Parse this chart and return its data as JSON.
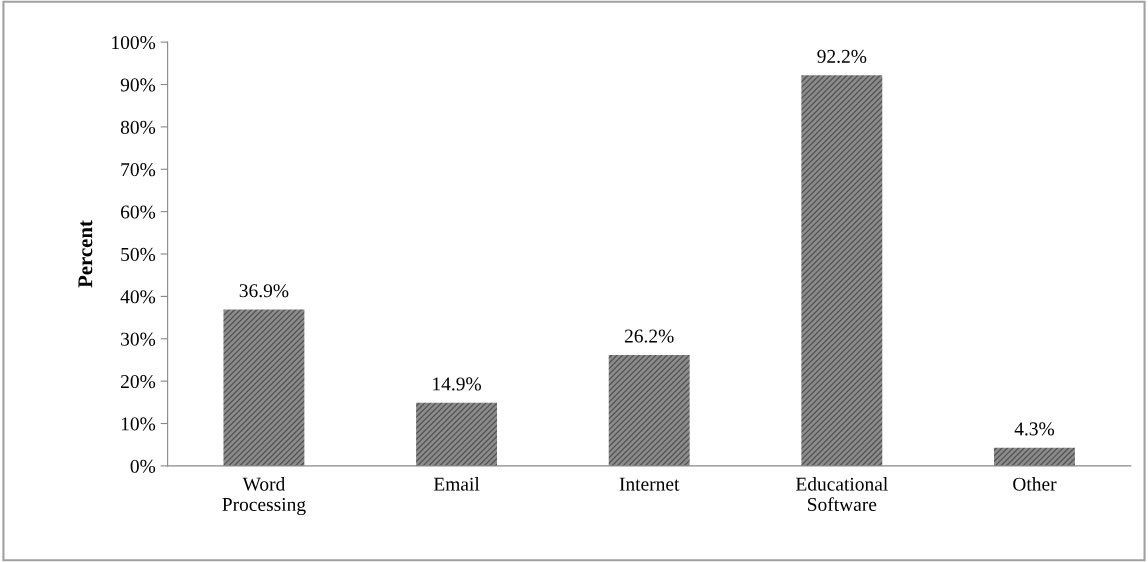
{
  "chart_data": {
    "type": "bar",
    "ylabel": "Percent",
    "categories": [
      "Word\nProcessing",
      "Email",
      "Internet",
      "Educational\nSoftware",
      "Other"
    ],
    "values": [
      36.9,
      14.9,
      26.2,
      92.2,
      4.3
    ],
    "value_labels": [
      "36.9%",
      "14.9%",
      "26.2%",
      "92.2%",
      "4.3%"
    ],
    "color": "#8c8c8c",
    "ylim": [
      0,
      100
    ],
    "yticks": [
      {
        "value": 0,
        "label": "0%"
      },
      {
        "value": 10,
        "label": "10%"
      },
      {
        "value": 20,
        "label": "20%"
      },
      {
        "value": 30,
        "label": "30%"
      },
      {
        "value": 40,
        "label": "40%"
      },
      {
        "value": 50,
        "label": "50%"
      },
      {
        "value": 60,
        "label": "60%"
      },
      {
        "value": 70,
        "label": "70%"
      },
      {
        "value": 80,
        "label": "80%"
      },
      {
        "value": 90,
        "label": "90%"
      },
      {
        "value": 100,
        "label": "100%"
      }
    ],
    "grid": false,
    "legend": false
  }
}
